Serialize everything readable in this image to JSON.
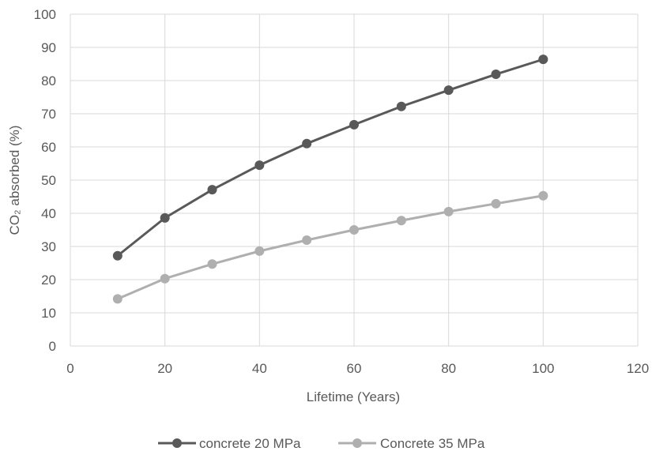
{
  "chart_data": {
    "type": "line",
    "xlabel": "Lifetime (Years)",
    "ylabel": "CO₂ absorbed (%)",
    "xlim": [
      0,
      120
    ],
    "ylim": [
      0,
      100
    ],
    "x_ticks": [
      "0",
      "20",
      "40",
      "60",
      "80",
      "100",
      "120"
    ],
    "y_ticks": [
      "0",
      "10",
      "20",
      "30",
      "40",
      "50",
      "60",
      "70",
      "80",
      "90",
      "100"
    ],
    "grid": true,
    "legend_position": "bottom",
    "x": [
      10,
      20,
      30,
      40,
      50,
      60,
      70,
      80,
      90,
      100
    ],
    "series": [
      {
        "name": "concrete 20 MPa",
        "color": "#595959",
        "values": [
          27.2,
          38.6,
          47.1,
          54.5,
          61.0,
          66.7,
          72.2,
          77.1,
          81.9,
          86.4
        ]
      },
      {
        "name": "Concrete 35 MPa",
        "color": "#afafaf",
        "values": [
          14.2,
          20.3,
          24.7,
          28.6,
          31.9,
          35.0,
          37.8,
          40.5,
          42.9,
          45.3
        ]
      }
    ]
  }
}
